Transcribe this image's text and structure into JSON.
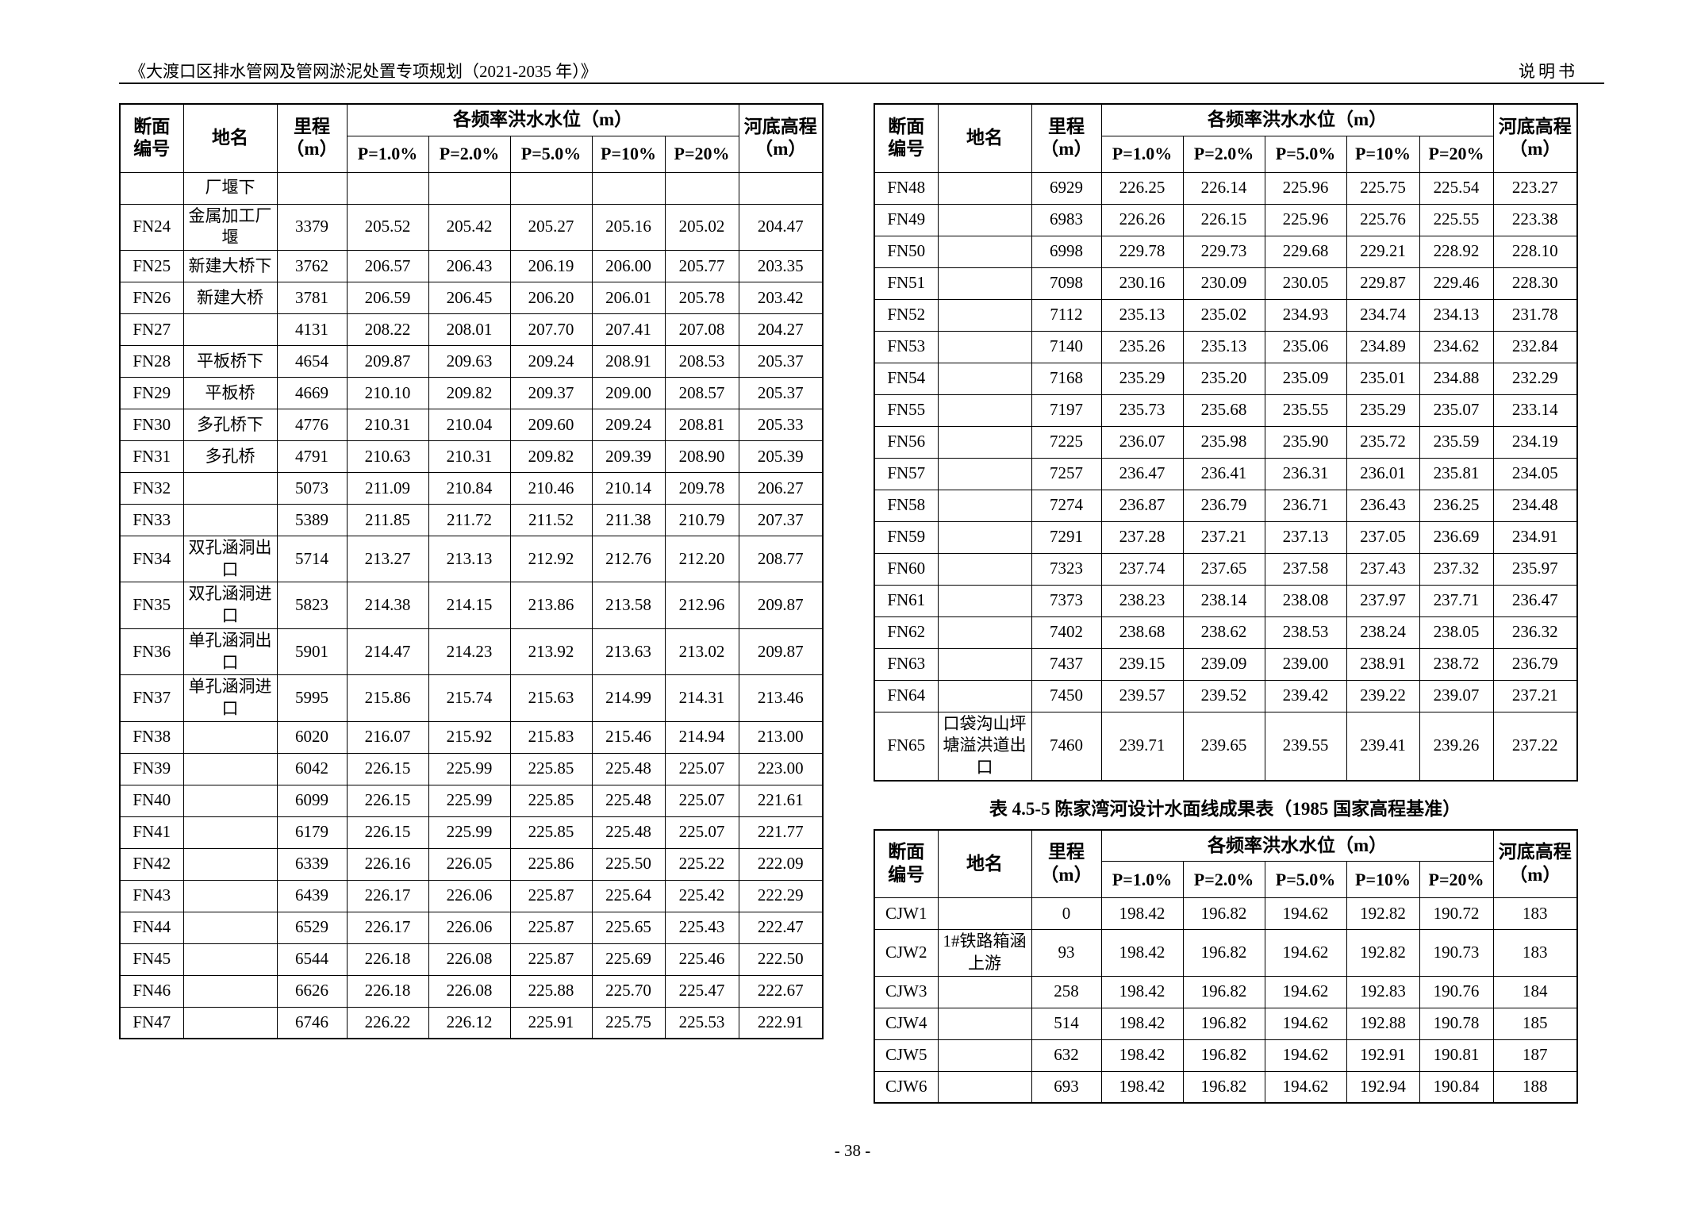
{
  "page": {
    "header_title": "《大渡口区排水管网及管网淤泥处置专项规划（2021-2035 年）》",
    "header_doc_type": "说明书",
    "page_number": "- 38 -"
  },
  "col_headers": {
    "section_id": "断面\n编号",
    "place_name": "地名",
    "chainage": "里程\n（m）",
    "flood_group": "各频率洪水水位（m）",
    "p_levels": [
      "P=1.0%",
      "P=2.0%",
      "P=5.0%",
      "P=10%",
      "P=20%"
    ],
    "riverbed": "河底高程\n（m）"
  },
  "left_table": {
    "rows": [
      [
        "",
        "厂堰下",
        "",
        "",
        "",
        "",
        "",
        "",
        ""
      ],
      [
        "FN24",
        "金属加工厂堰",
        "3379",
        "205.52",
        "205.42",
        "205.27",
        "205.16",
        "205.02",
        "204.47"
      ],
      [
        "FN25",
        "新建大桥下",
        "3762",
        "206.57",
        "206.43",
        "206.19",
        "206.00",
        "205.77",
        "203.35"
      ],
      [
        "FN26",
        "新建大桥",
        "3781",
        "206.59",
        "206.45",
        "206.20",
        "206.01",
        "205.78",
        "203.42"
      ],
      [
        "FN27",
        "",
        "4131",
        "208.22",
        "208.01",
        "207.70",
        "207.41",
        "207.08",
        "204.27"
      ],
      [
        "FN28",
        "平板桥下",
        "4654",
        "209.87",
        "209.63",
        "209.24",
        "208.91",
        "208.53",
        "205.37"
      ],
      [
        "FN29",
        "平板桥",
        "4669",
        "210.10",
        "209.82",
        "209.37",
        "209.00",
        "208.57",
        "205.37"
      ],
      [
        "FN30",
        "多孔桥下",
        "4776",
        "210.31",
        "210.04",
        "209.60",
        "209.24",
        "208.81",
        "205.33"
      ],
      [
        "FN31",
        "多孔桥",
        "4791",
        "210.63",
        "210.31",
        "209.82",
        "209.39",
        "208.90",
        "205.39"
      ],
      [
        "FN32",
        "",
        "5073",
        "211.09",
        "210.84",
        "210.46",
        "210.14",
        "209.78",
        "206.27"
      ],
      [
        "FN33",
        "",
        "5389",
        "211.85",
        "211.72",
        "211.52",
        "211.38",
        "210.79",
        "207.37"
      ],
      [
        "FN34",
        "双孔涵洞出口",
        "5714",
        "213.27",
        "213.13",
        "212.92",
        "212.76",
        "212.20",
        "208.77"
      ],
      [
        "FN35",
        "双孔涵洞进口",
        "5823",
        "214.38",
        "214.15",
        "213.86",
        "213.58",
        "212.96",
        "209.87"
      ],
      [
        "FN36",
        "单孔涵洞出口",
        "5901",
        "214.47",
        "214.23",
        "213.92",
        "213.63",
        "213.02",
        "209.87"
      ],
      [
        "FN37",
        "单孔涵洞进口",
        "5995",
        "215.86",
        "215.74",
        "215.63",
        "214.99",
        "214.31",
        "213.46"
      ],
      [
        "FN38",
        "",
        "6020",
        "216.07",
        "215.92",
        "215.83",
        "215.46",
        "214.94",
        "213.00"
      ],
      [
        "FN39",
        "",
        "6042",
        "226.15",
        "225.99",
        "225.85",
        "225.48",
        "225.07",
        "223.00"
      ],
      [
        "FN40",
        "",
        "6099",
        "226.15",
        "225.99",
        "225.85",
        "225.48",
        "225.07",
        "221.61"
      ],
      [
        "FN41",
        "",
        "6179",
        "226.15",
        "225.99",
        "225.85",
        "225.48",
        "225.07",
        "221.77"
      ],
      [
        "FN42",
        "",
        "6339",
        "226.16",
        "226.05",
        "225.86",
        "225.50",
        "225.22",
        "222.09"
      ],
      [
        "FN43",
        "",
        "6439",
        "226.17",
        "226.06",
        "225.87",
        "225.64",
        "225.42",
        "222.29"
      ],
      [
        "FN44",
        "",
        "6529",
        "226.17",
        "226.06",
        "225.87",
        "225.65",
        "225.43",
        "222.47"
      ],
      [
        "FN45",
        "",
        "6544",
        "226.18",
        "226.08",
        "225.87",
        "225.69",
        "225.46",
        "222.50"
      ],
      [
        "FN46",
        "",
        "6626",
        "226.18",
        "226.08",
        "225.88",
        "225.70",
        "225.47",
        "222.67"
      ],
      [
        "FN47",
        "",
        "6746",
        "226.22",
        "226.12",
        "225.91",
        "225.75",
        "225.53",
        "222.91"
      ]
    ]
  },
  "right_table": {
    "rows": [
      [
        "FN48",
        "",
        "6929",
        "226.25",
        "226.14",
        "225.96",
        "225.75",
        "225.54",
        "223.27"
      ],
      [
        "FN49",
        "",
        "6983",
        "226.26",
        "226.15",
        "225.96",
        "225.76",
        "225.55",
        "223.38"
      ],
      [
        "FN50",
        "",
        "6998",
        "229.78",
        "229.73",
        "229.68",
        "229.21",
        "228.92",
        "228.10"
      ],
      [
        "FN51",
        "",
        "7098",
        "230.16",
        "230.09",
        "230.05",
        "229.87",
        "229.46",
        "228.30"
      ],
      [
        "FN52",
        "",
        "7112",
        "235.13",
        "235.02",
        "234.93",
        "234.74",
        "234.13",
        "231.78"
      ],
      [
        "FN53",
        "",
        "7140",
        "235.26",
        "235.13",
        "235.06",
        "234.89",
        "234.62",
        "232.84"
      ],
      [
        "FN54",
        "",
        "7168",
        "235.29",
        "235.20",
        "235.09",
        "235.01",
        "234.88",
        "232.29"
      ],
      [
        "FN55",
        "",
        "7197",
        "235.73",
        "235.68",
        "235.55",
        "235.29",
        "235.07",
        "233.14"
      ],
      [
        "FN56",
        "",
        "7225",
        "236.07",
        "235.98",
        "235.90",
        "235.72",
        "235.59",
        "234.19"
      ],
      [
        "FN57",
        "",
        "7257",
        "236.47",
        "236.41",
        "236.31",
        "236.01",
        "235.81",
        "234.05"
      ],
      [
        "FN58",
        "",
        "7274",
        "236.87",
        "236.79",
        "236.71",
        "236.43",
        "236.25",
        "234.48"
      ],
      [
        "FN59",
        "",
        "7291",
        "237.28",
        "237.21",
        "237.13",
        "237.05",
        "236.69",
        "234.91"
      ],
      [
        "FN60",
        "",
        "7323",
        "237.74",
        "237.65",
        "237.58",
        "237.43",
        "237.32",
        "235.97"
      ],
      [
        "FN61",
        "",
        "7373",
        "238.23",
        "238.14",
        "238.08",
        "237.97",
        "237.71",
        "236.47"
      ],
      [
        "FN62",
        "",
        "7402",
        "238.68",
        "238.62",
        "238.53",
        "238.24",
        "238.05",
        "236.32"
      ],
      [
        "FN63",
        "",
        "7437",
        "239.15",
        "239.09",
        "239.00",
        "238.91",
        "238.72",
        "236.79"
      ],
      [
        "FN64",
        "",
        "7450",
        "239.57",
        "239.52",
        "239.42",
        "239.22",
        "239.07",
        "237.21"
      ],
      [
        "FN65",
        "口袋沟山坪塘溢洪道出口",
        "7460",
        "239.71",
        "239.65",
        "239.55",
        "239.41",
        "239.26",
        "237.22"
      ]
    ]
  },
  "caption": "表 4.5-5 陈家湾河设计水面线成果表（1985 国家高程基准）",
  "cjw_table": {
    "rows": [
      [
        "CJW1",
        "",
        "0",
        "198.42",
        "196.82",
        "194.62",
        "192.82",
        "190.72",
        "183"
      ],
      [
        "CJW2",
        "1#铁路箱涵上游",
        "93",
        "198.42",
        "196.82",
        "194.62",
        "192.82",
        "190.73",
        "183"
      ],
      [
        "CJW3",
        "",
        "258",
        "198.42",
        "196.82",
        "194.62",
        "192.83",
        "190.76",
        "184"
      ],
      [
        "CJW4",
        "",
        "514",
        "198.42",
        "196.82",
        "194.62",
        "192.88",
        "190.78",
        "185"
      ],
      [
        "CJW5",
        "",
        "632",
        "198.42",
        "196.82",
        "194.62",
        "192.91",
        "190.81",
        "187"
      ],
      [
        "CJW6",
        "",
        "693",
        "198.42",
        "196.82",
        "194.62",
        "192.94",
        "190.84",
        "188"
      ]
    ]
  }
}
